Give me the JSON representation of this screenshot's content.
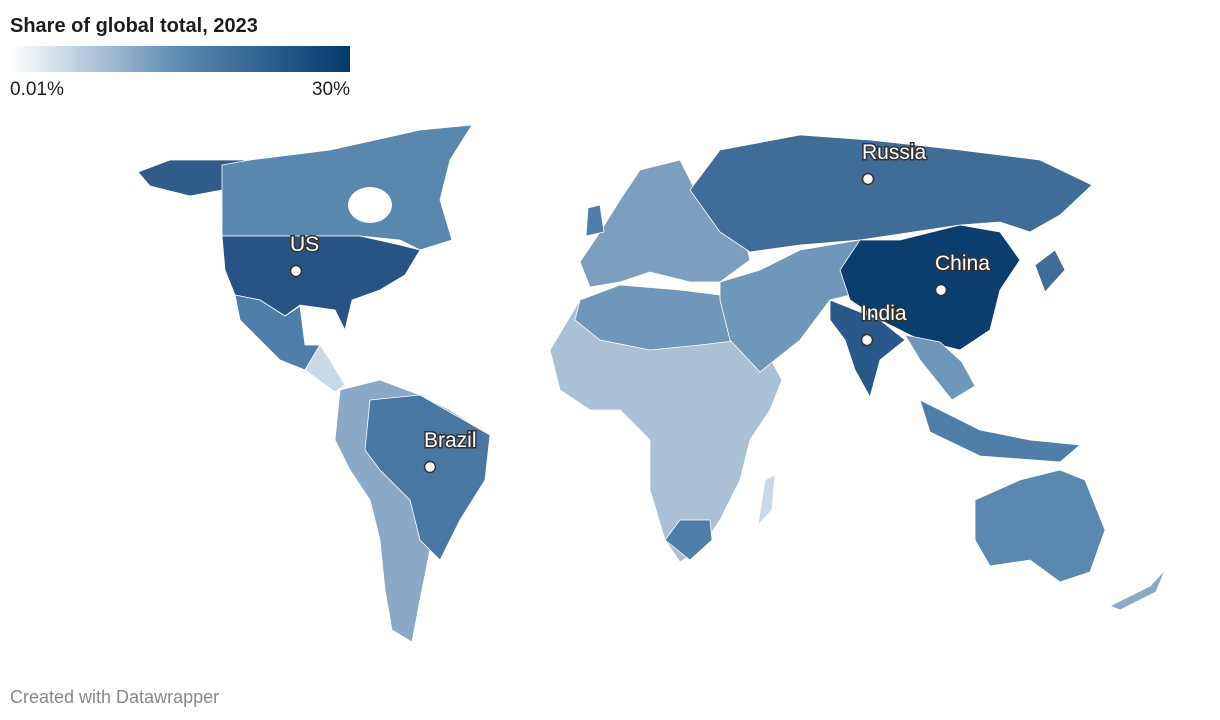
{
  "legend": {
    "title": "Share of global total, 2023",
    "scale": "log",
    "min": {
      "value": 0.01,
      "label": "0.01%"
    },
    "max": {
      "value": 30,
      "label": "30%"
    },
    "colors": [
      "#ffffff",
      "#5c8ab1",
      "#003a6b"
    ]
  },
  "labels": [
    "US",
    "Russia",
    "China",
    "India",
    "Brazil"
  ],
  "footer": "Created with Datawrapper"
}
